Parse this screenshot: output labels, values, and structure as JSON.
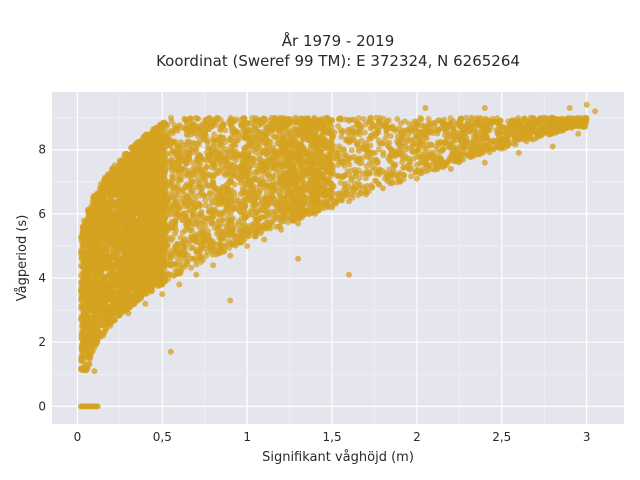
{
  "chart_data": {
    "type": "scatter",
    "title_line1": "År 1979 - 2019",
    "title_line2": "Koordinat (Sweref 99 TM): E 372324, N 6265264",
    "xlabel": "Signifikant våghöjd (m)",
    "ylabel": "Vågperiod (s)",
    "xlim": [
      -0.15,
      3.22
    ],
    "ylim": [
      -0.55,
      9.8
    ],
    "x_ticks": [
      {
        "value": 0,
        "label": "0"
      },
      {
        "value": 0.5,
        "label": "0,5"
      },
      {
        "value": 1,
        "label": "1"
      },
      {
        "value": 1.5,
        "label": "1,5"
      },
      {
        "value": 2,
        "label": "2"
      },
      {
        "value": 2.5,
        "label": "2,5"
      },
      {
        "value": 3,
        "label": "3"
      }
    ],
    "y_ticks": [
      {
        "value": 0,
        "label": "0"
      },
      {
        "value": 2,
        "label": "2"
      },
      {
        "value": 4,
        "label": "4"
      },
      {
        "value": 6,
        "label": "6"
      },
      {
        "value": 8,
        "label": "8"
      }
    ],
    "grid": true,
    "marker_color": "#D4A21F",
    "plot_background": "#E5E5EE",
    "series": [
      {
        "points": [
          [
            0.03,
            1.5
          ],
          [
            0.04,
            2.6
          ],
          [
            0.05,
            3.4
          ],
          [
            0.06,
            4.2
          ],
          [
            0.07,
            5.0
          ],
          [
            0.08,
            5.7
          ],
          [
            0.1,
            1.1
          ],
          [
            0.12,
            6.3
          ],
          [
            0.15,
            6.6
          ],
          [
            0.18,
            7.2
          ],
          [
            0.22,
            7.0
          ],
          [
            0.26,
            6.8
          ],
          [
            0.3,
            7.1
          ],
          [
            0.35,
            7.3
          ],
          [
            0.4,
            7.4
          ],
          [
            0.45,
            7.6
          ],
          [
            0.5,
            7.7
          ],
          [
            0.6,
            7.9
          ],
          [
            0.7,
            8.0
          ],
          [
            0.8,
            8.1
          ],
          [
            0.9,
            8.3
          ],
          [
            1.0,
            8.4
          ],
          [
            1.1,
            8.5
          ],
          [
            1.2,
            8.7
          ],
          [
            1.3,
            8.5
          ],
          [
            1.4,
            8.4
          ],
          [
            1.5,
            8.4
          ],
          [
            1.6,
            8.3
          ],
          [
            1.7,
            8.2
          ],
          [
            1.8,
            8.2
          ],
          [
            1.9,
            8.3
          ],
          [
            2.0,
            8.4
          ],
          [
            2.05,
            9.3
          ],
          [
            2.2,
            8.5
          ],
          [
            2.4,
            8.7
          ],
          [
            2.4,
            9.3
          ],
          [
            2.6,
            8.9
          ],
          [
            2.8,
            9.0
          ],
          [
            2.9,
            9.3
          ],
          [
            3.0,
            9.4
          ],
          [
            3.05,
            9.2
          ],
          [
            0.15,
            2.2
          ],
          [
            0.2,
            2.6
          ],
          [
            0.3,
            2.9
          ],
          [
            0.4,
            3.2
          ],
          [
            0.5,
            3.5
          ],
          [
            0.6,
            3.8
          ],
          [
            0.7,
            4.1
          ],
          [
            0.8,
            4.4
          ],
          [
            0.9,
            4.7
          ],
          [
            1.0,
            5.0
          ],
          [
            1.1,
            5.2
          ],
          [
            1.2,
            5.5
          ],
          [
            1.3,
            5.7
          ],
          [
            1.4,
            6.0
          ],
          [
            1.5,
            6.2
          ],
          [
            1.6,
            6.4
          ],
          [
            1.7,
            6.6
          ],
          [
            1.8,
            6.8
          ],
          [
            1.9,
            7.0
          ],
          [
            2.0,
            7.1
          ],
          [
            2.2,
            7.4
          ],
          [
            2.4,
            7.6
          ],
          [
            2.6,
            7.9
          ],
          [
            2.8,
            8.1
          ],
          [
            2.95,
            8.5
          ],
          [
            1.3,
            4.6
          ],
          [
            1.6,
            4.1
          ],
          [
            0.9,
            3.3
          ],
          [
            0.55,
            1.7
          ]
        ]
      }
    ]
  }
}
